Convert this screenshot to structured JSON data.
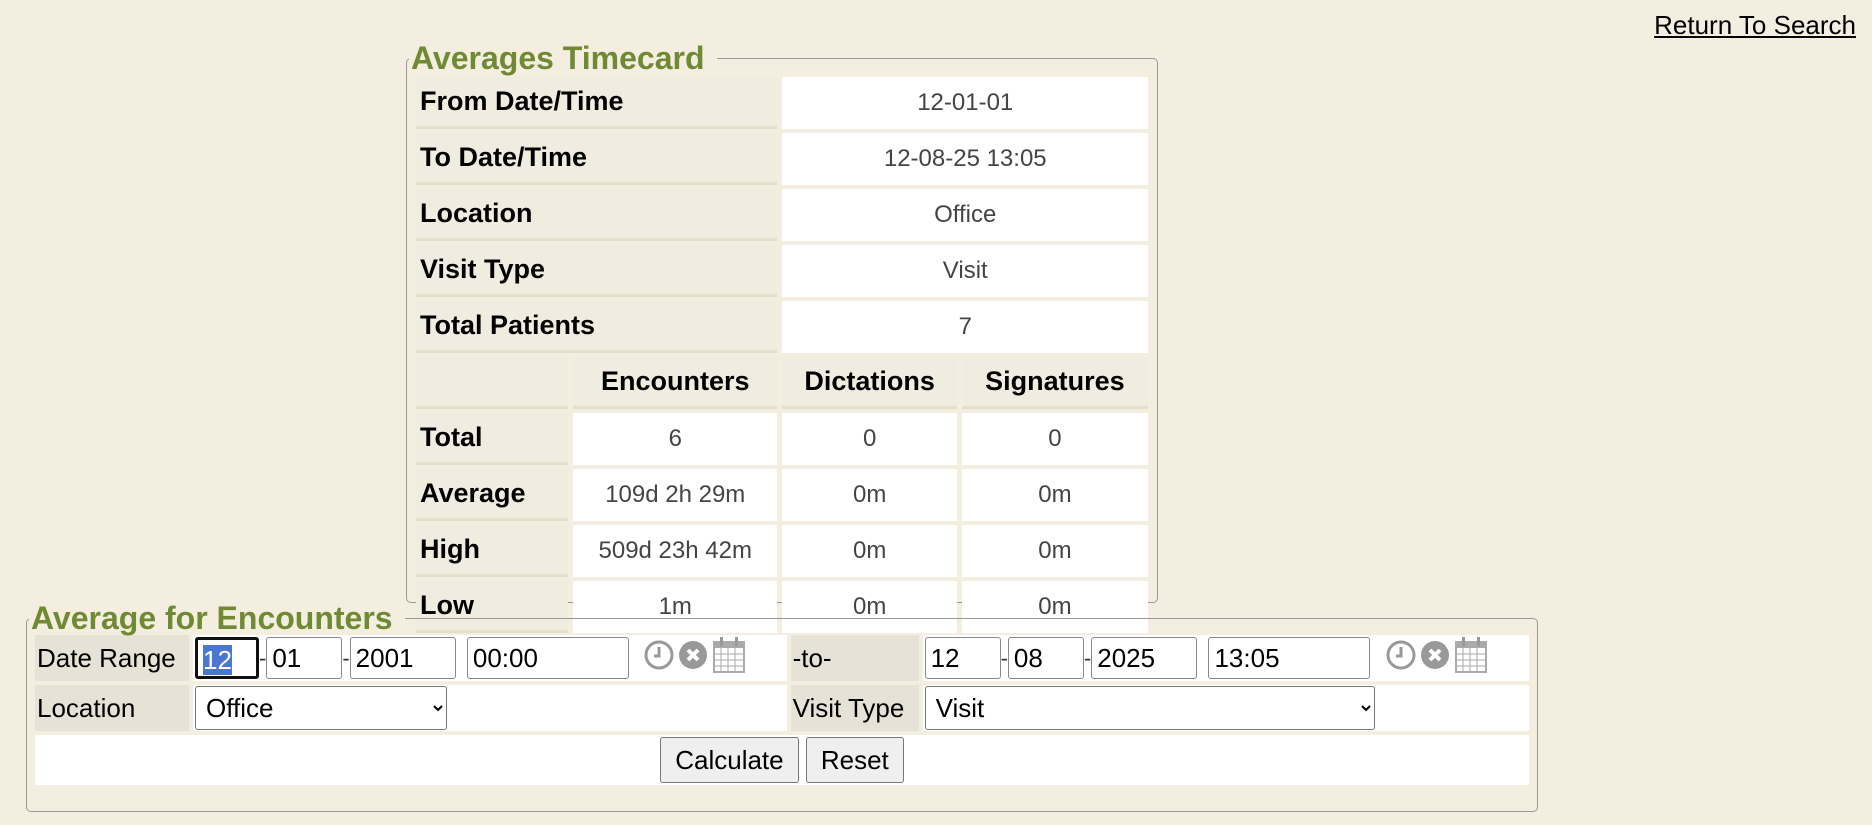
{
  "return_link": "Return To Search",
  "timecard": {
    "title": "Averages Timecard",
    "info": [
      {
        "label": "From Date/Time",
        "value": "12-01-01"
      },
      {
        "label": "To Date/Time",
        "value": "12-08-25 13:05"
      },
      {
        "label": "Location",
        "value": "Office"
      },
      {
        "label": "Visit Type",
        "value": "Visit"
      },
      {
        "label": "Total Patients",
        "value": "7"
      }
    ],
    "columns": [
      "Encounters",
      "Dictations",
      "Signatures"
    ],
    "rows": [
      {
        "label": "Total",
        "values": [
          "6",
          "0",
          "0"
        ]
      },
      {
        "label": "Average",
        "values": [
          "109d 2h 29m",
          "0m",
          "0m"
        ]
      },
      {
        "label": "High",
        "values": [
          "509d 23h 42m",
          "0m",
          "0m"
        ]
      },
      {
        "label": "Low",
        "values": [
          "1m",
          "0m",
          "0m"
        ]
      }
    ]
  },
  "form": {
    "title": "Average for Encounters",
    "date_range_label": "Date Range",
    "to_label": "-to-",
    "from": {
      "month": "12",
      "day": "01",
      "year": "2001",
      "time": "00:00"
    },
    "to": {
      "month": "12",
      "day": "08",
      "year": "2025",
      "time": "13:05"
    },
    "separator": "-",
    "location_label": "Location",
    "location_value": "Office",
    "visit_type_label": "Visit Type",
    "visit_type_value": "Visit",
    "calculate_label": "Calculate",
    "reset_label": "Reset"
  },
  "colors": {
    "legend": "#6f8a32",
    "background": "#f4eee1",
    "selection": "#4a78d0"
  }
}
